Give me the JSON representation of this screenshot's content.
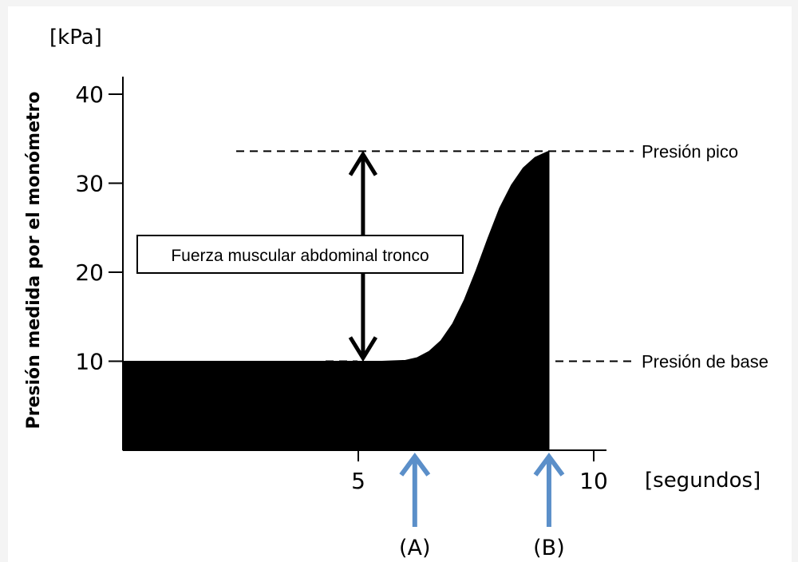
{
  "chart_data": {
    "type": "area",
    "ylabel": "Presión medida por el monómetro",
    "y_unit": "[kPa]",
    "x_unit": "[segundos]",
    "x_ticks": [
      5,
      10
    ],
    "y_ticks": [
      10,
      20,
      30,
      40
    ],
    "xlim": [
      0,
      10.3
    ],
    "ylim": [
      0,
      42
    ],
    "x": [
      0,
      1,
      2,
      3,
      4,
      5,
      5.5,
      6,
      6.25,
      6.5,
      6.75,
      7,
      7.25,
      7.5,
      7.75,
      8,
      8.25,
      8.5,
      8.75,
      9,
      9.05
    ],
    "y": [
      10,
      10,
      10,
      10,
      10,
      10,
      10,
      10.1,
      10.4,
      11.1,
      12.3,
      14.2,
      16.9,
      20.2,
      23.8,
      27.2,
      29.8,
      31.7,
      32.9,
      33.5,
      33.6
    ],
    "references": [
      {
        "label": "Presión pico",
        "value": 33.6
      },
      {
        "label": "Presión de base",
        "value": 10
      }
    ],
    "annotation": {
      "label": "Fuerza muscular abdominal tronco",
      "x": 5.1,
      "from": 10,
      "to": 33.6
    },
    "markers": [
      {
        "label": "(A)",
        "x": 6.2
      },
      {
        "label": "(B)",
        "x": 9.05
      }
    ],
    "colors": {
      "fill": "#000000",
      "marker_arrow": "#5b8fc9",
      "background": "#f4f4f4"
    }
  }
}
